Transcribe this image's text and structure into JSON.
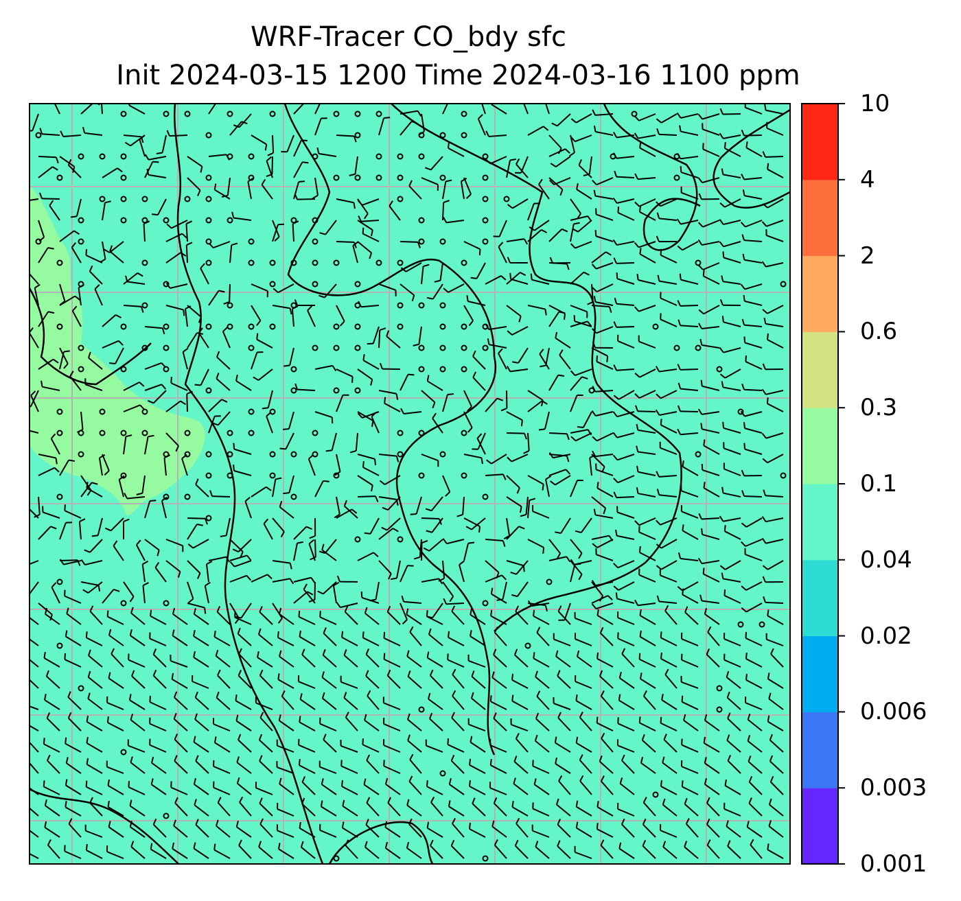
{
  "title": {
    "line1": "WRF-Tracer CO_bdy sfc",
    "line2": "Init 2024-03-15 1200 Time 2024-03-16 1100 ppm"
  },
  "colorbar": {
    "tick_labels": [
      "0.001",
      "0.003",
      "0.006",
      "0.02",
      "0.04",
      "0.1",
      "0.3",
      "0.6",
      "2",
      "4",
      "10"
    ],
    "colors": [
      "#6428ff",
      "#3c78f5",
      "#00aeef",
      "#2ddcd2",
      "#64f5c8",
      "#96faa0",
      "#d2e182",
      "#ffaa5f",
      "#ff6e3c",
      "#ff2814"
    ]
  },
  "map": {
    "background_color": "#64f5c8",
    "elevated_region_color": "#96faa0",
    "grid_color": "#b4b4b4",
    "coast_color": "#000000",
    "barb_color": "#000000"
  }
}
